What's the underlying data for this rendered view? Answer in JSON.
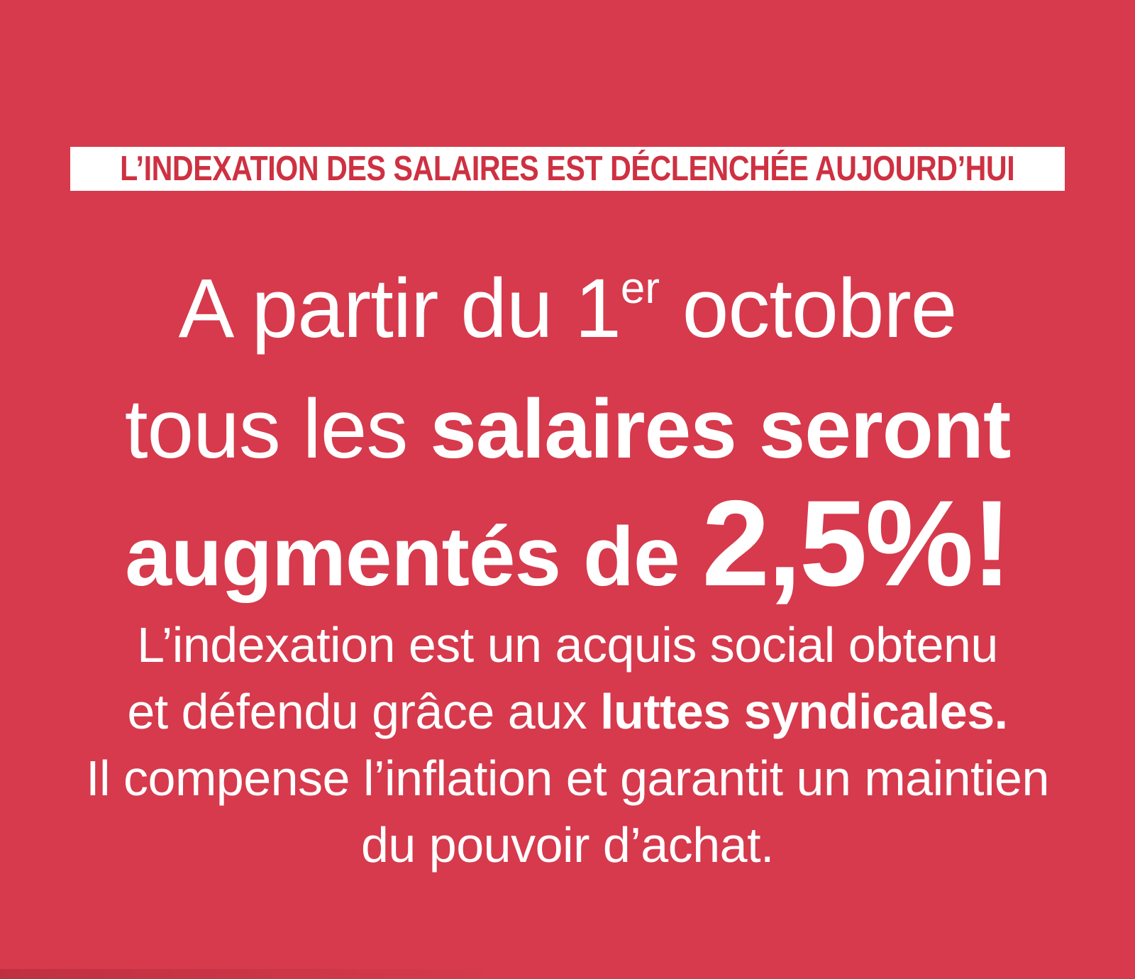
{
  "poster": {
    "background_color": "#d63a4c",
    "text_color": "#ffffff",
    "banner": {
      "label": "L’INDEXATION DES SALAIRES EST DÉCLENCHÉE AUJOURD’HUI",
      "background_color": "#ffffff",
      "text_color": "#ce3142"
    },
    "headline": {
      "line1_pre": "A partir du 1",
      "line1_sup": "er",
      "line1_post": " octobre",
      "line2_light": "tous les ",
      "line2_bold": "salaires seront",
      "line3_bold": "augmentés de ",
      "line3_big": "2,5%!"
    },
    "body": {
      "line1": "L’indexation est un acquis social obtenu",
      "line2_pre": "et défendu grâce aux ",
      "line2_bold": "luttes syndicales.",
      "line3": "Il compense l’inflation et garantit un maintien",
      "line4": "du pouvoir d’achat."
    }
  }
}
